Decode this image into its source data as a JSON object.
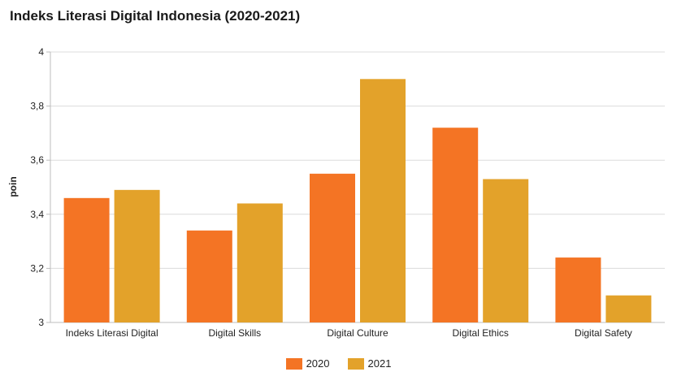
{
  "chart_data": {
    "type": "bar",
    "title": "Indeks Literasi Digital Indonesia (2020-2021)",
    "xlabel": "",
    "ylabel": "poin",
    "ylim": [
      3,
      4
    ],
    "yticks": [
      "3",
      "3,2",
      "3,4",
      "3,6",
      "3,8",
      "4"
    ],
    "ytick_values": [
      3,
      3.2,
      3.4,
      3.6,
      3.8,
      4
    ],
    "grid": true,
    "legend_position": "bottom",
    "categories": [
      "Indeks Literasi Digital",
      "Digital Skills",
      "Digital Culture",
      "Digital Ethics",
      "Digital Safety"
    ],
    "series": [
      {
        "name": "2020",
        "color": "#f47424",
        "values": [
          3.46,
          3.34,
          3.55,
          3.72,
          3.24
        ]
      },
      {
        "name": "2021",
        "color": "#e3a22a",
        "values": [
          3.49,
          3.44,
          3.9,
          3.53,
          3.1
        ]
      }
    ]
  }
}
